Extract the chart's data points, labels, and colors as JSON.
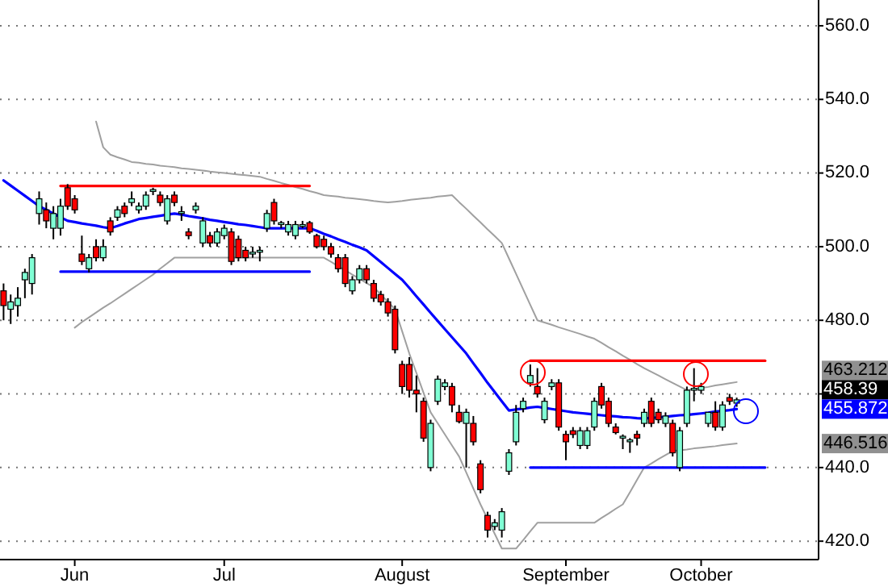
{
  "chart_data": {
    "type": "candlestick",
    "categories": [
      null,
      null,
      null,
      null,
      null,
      null,
      null,
      null,
      null,
      null,
      "Jun",
      null,
      null,
      null,
      null,
      null,
      null,
      null,
      null,
      null,
      null,
      null,
      null,
      null,
      null,
      null,
      null,
      null,
      null,
      null,
      null,
      "Jul",
      null,
      null,
      null,
      null,
      null,
      null,
      null,
      null,
      null,
      null,
      null,
      null,
      null,
      null,
      null,
      null,
      null,
      null,
      null,
      null,
      null,
      null,
      null,
      null,
      "August",
      null,
      null,
      null,
      null,
      null,
      null,
      null,
      null,
      null,
      null,
      null,
      null,
      null,
      null,
      null,
      null,
      null,
      null,
      null,
      null,
      null,
      null,
      "September",
      null,
      null,
      null,
      null,
      null,
      null,
      null,
      null,
      null,
      null,
      null,
      null,
      null,
      null,
      null,
      null,
      null,
      null,
      "October",
      null,
      null,
      null,
      null,
      null,
      null,
      null,
      null,
      null,
      null,
      null,
      null,
      null,
      null,
      null,
      null
    ],
    "ohlc": [
      [
        488,
        490,
        480,
        484
      ],
      [
        483,
        487,
        479,
        485
      ],
      [
        484,
        489,
        481,
        486
      ],
      [
        491,
        494,
        486,
        493
      ],
      [
        490,
        498,
        487,
        497
      ],
      [
        509,
        515,
        506,
        513
      ],
      [
        510,
        512,
        505,
        507
      ],
      [
        505,
        511,
        502,
        509
      ],
      [
        505,
        513,
        503,
        511
      ],
      [
        516,
        517,
        510,
        511
      ],
      [
        513,
        514,
        509,
        510
      ],
      [
        498,
        503,
        495,
        496
      ],
      [
        494,
        498,
        493,
        497
      ],
      [
        500,
        502,
        496,
        497
      ],
      [
        497,
        502,
        496,
        500
      ],
      [
        507,
        508,
        503,
        504
      ],
      [
        508,
        511,
        507,
        510
      ],
      [
        511,
        512,
        508,
        509
      ],
      [
        512,
        515,
        511,
        513
      ],
      [
        510,
        512,
        509,
        511
      ],
      [
        511,
        515,
        510,
        514
      ],
      [
        515,
        516,
        514,
        515.5
      ],
      [
        514,
        515,
        511,
        512
      ],
      [
        507,
        514,
        506,
        513
      ],
      [
        514,
        515,
        511,
        512
      ],
      [
        509,
        511,
        507,
        509.5
      ],
      [
        504,
        505,
        502,
        503
      ],
      [
        510,
        512,
        509,
        511
      ],
      [
        501,
        508,
        500,
        507
      ],
      [
        503,
        504,
        500,
        501
      ],
      [
        501,
        505,
        500,
        504
      ],
      [
        503,
        506,
        502,
        505
      ],
      [
        504,
        505,
        495,
        496
      ],
      [
        502,
        503,
        496,
        497
      ],
      [
        499,
        500,
        496,
        497
      ],
      [
        498,
        500,
        497,
        498.5
      ],
      [
        498.5,
        500,
        496,
        499
      ],
      [
        505,
        510,
        504,
        509
      ],
      [
        512,
        513,
        506,
        507
      ],
      [
        506,
        507,
        505,
        506.5
      ],
      [
        504,
        507,
        503,
        506
      ],
      [
        503,
        507,
        502,
        506
      ],
      [
        505.5,
        507,
        505,
        506
      ],
      [
        506.5,
        507,
        503.5,
        504
      ],
      [
        503,
        503.5,
        499.5,
        500
      ],
      [
        502,
        503,
        499,
        500
      ],
      [
        500,
        501,
        497,
        498
      ],
      [
        497,
        498,
        493,
        494
      ],
      [
        497,
        498,
        489,
        490
      ],
      [
        488,
        492,
        487,
        491
      ],
      [
        491,
        495,
        490,
        494
      ],
      [
        494,
        495,
        490,
        491
      ],
      [
        490,
        491,
        485,
        486
      ],
      [
        487,
        488,
        484,
        485
      ],
      [
        485,
        486,
        481,
        482
      ],
      [
        483,
        484,
        471,
        472
      ],
      [
        468,
        469,
        460,
        462
      ],
      [
        468,
        470,
        459,
        461
      ],
      [
        461,
        465,
        455,
        460
      ],
      [
        458,
        459,
        447,
        448
      ],
      [
        440,
        453,
        439,
        452
      ],
      [
        458,
        465,
        457,
        464
      ],
      [
        462,
        464,
        461,
        463
      ],
      [
        462,
        463,
        455,
        457
      ],
      [
        455,
        457,
        452,
        452.5
      ],
      [
        452,
        456,
        440,
        455
      ],
      [
        452,
        454,
        446,
        447
      ],
      [
        441,
        442,
        433,
        434
      ],
      [
        427,
        428,
        421,
        423
      ],
      [
        424,
        426,
        423,
        425
      ],
      [
        423,
        429,
        421,
        428
      ],
      [
        439,
        445,
        438,
        444
      ],
      [
        447,
        457,
        446,
        455
      ],
      [
        456,
        459,
        455,
        458
      ],
      [
        463,
        468,
        462,
        465
      ],
      [
        462,
        467,
        459,
        460
      ],
      [
        453,
        459,
        452,
        458
      ],
      [
        462,
        464,
        461,
        463
      ],
      [
        463,
        464,
        450,
        451
      ],
      [
        449,
        450,
        442,
        447
      ],
      [
        450,
        451,
        448,
        449
      ],
      [
        446,
        451,
        445,
        450
      ],
      [
        446,
        451,
        445,
        450
      ],
      [
        451,
        459,
        450,
        458
      ],
      [
        462,
        463,
        456,
        457
      ],
      [
        458,
        459,
        451,
        452
      ],
      [
        451,
        452,
        449,
        449.5
      ],
      [
        448,
        449,
        445,
        448.5
      ],
      [
        447,
        448,
        444,
        447.5
      ],
      [
        449,
        450,
        446,
        448
      ],
      [
        452,
        456,
        451,
        455
      ],
      [
        458,
        459,
        451,
        452
      ],
      [
        455,
        456,
        452,
        453
      ],
      [
        452,
        455,
        451,
        454
      ],
      [
        452,
        453,
        443,
        444
      ],
      [
        440,
        451,
        439,
        450
      ],
      [
        452,
        462,
        451,
        461
      ],
      [
        461,
        467,
        458,
        461.5
      ],
      [
        461,
        463,
        460,
        462
      ],
      [
        452,
        455,
        451,
        455
      ],
      [
        455,
        458,
        450,
        451
      ],
      [
        451,
        458,
        450,
        457
      ],
      [
        459,
        460,
        457,
        458
      ],
      [
        457.5,
        459,
        456.5,
        458.39
      ],
      null,
      null,
      null,
      null,
      null,
      null,
      null,
      null,
      null,
      null,
      null
    ],
    "colors": [
      "#ff0000",
      "#80ffd4",
      "#80ffd4",
      "#80ffd4",
      "#80ffd4",
      "#80ffd4",
      "#ff0000",
      "#80ffd4",
      "#80ffd4",
      "#ff0000",
      "#ff0000",
      "#ff0000",
      "#80ffd4",
      "#ff0000",
      "#80ffd4",
      "#ff0000",
      "#80ffd4",
      "#ff0000",
      "#80ffd4",
      "#80ffd4",
      "#80ffd4",
      "#80ffd4",
      "#ff0000",
      "#80ffd4",
      "#ff0000",
      "#80ffd4",
      "#ff0000",
      "#80ffd4",
      "#80ffd4",
      "#ff0000",
      "#80ffd4",
      "#80ffd4",
      "#ff0000",
      "#ff0000",
      "#ff0000",
      "#80ffd4",
      "#80ffd4",
      "#80ffd4",
      "#ff0000",
      "#80ffd4",
      "#80ffd4",
      "#80ffd4",
      "#80ffd4",
      "#ff0000",
      "#ff0000",
      "#ff0000",
      "#ff0000",
      "#ff0000",
      "#ff0000",
      "#80ffd4",
      "#80ffd4",
      "#ff0000",
      "#ff0000",
      "#ff0000",
      "#ff0000",
      "#ff0000",
      "#ff0000",
      "#ff0000",
      "#ff0000",
      "#ff0000",
      "#80ffd4",
      "#80ffd4",
      "#80ffd4",
      "#ff0000",
      "#ff0000",
      "#80ffd4",
      "#ff0000",
      "#ff0000",
      "#ff0000",
      "#80ffd4",
      "#80ffd4",
      "#80ffd4",
      "#80ffd4",
      "#80ffd4",
      "#80ffd4",
      "#ff0000",
      "#80ffd4",
      "#80ffd4",
      "#ff0000",
      "#ff0000",
      "#ff0000",
      "#80ffd4",
      "#80ffd4",
      "#80ffd4",
      "#ff0000",
      "#ff0000",
      "#ff0000",
      "#80ffd4",
      "#80ffd4",
      "#ff0000",
      "#80ffd4",
      "#ff0000",
      "#ff0000",
      "#80ffd4",
      "#ff0000",
      "#80ffd4",
      "#80ffd4",
      "#80ffd4",
      "#80ffd4",
      "#80ffd4",
      "#ff0000",
      "#80ffd4",
      "#ff0000",
      "#80ffd4",
      null,
      null,
      null,
      null,
      null,
      null,
      null,
      null,
      null,
      null,
      null
    ],
    "series": [
      {
        "type": "line",
        "color": "#0000ff",
        "values": [
          518,
          516.6,
          515.2,
          513.8,
          512.4,
          511,
          510,
          509,
          508,
          507,
          506.7,
          506.3,
          506,
          505.7,
          505.3,
          505,
          505.6,
          506.3,
          506.9,
          507.5,
          507.8,
          508.1,
          508.4,
          508.7,
          509,
          508.7,
          508.3,
          508,
          507.7,
          507.3,
          507,
          506.7,
          506.4,
          506.1,
          505.9,
          505.6,
          505.3,
          505,
          505,
          505,
          505,
          505,
          505,
          505,
          504.3,
          503.5,
          502.8,
          502,
          501.3,
          500.5,
          499.8,
          499,
          497.4,
          495.8,
          494.2,
          492.6,
          491,
          488.8,
          486.5,
          484.3,
          482,
          479.8,
          477.6,
          475.4,
          473.2,
          471,
          468.3,
          465.7,
          463,
          460.5,
          458,
          455.5,
          455.8,
          456,
          456.3,
          456.5,
          456.2,
          455.9,
          455.6,
          455.3,
          455,
          454.8,
          454.6,
          454.4,
          454.2,
          454,
          453.9,
          453.7,
          453.6,
          453.4,
          453.3,
          453.5,
          453.6,
          453.8,
          454,
          454.2,
          454.3,
          454.5,
          454.7,
          454.9,
          455.2,
          455.4,
          455.6,
          455.872,
          null,
          null,
          null,
          null,
          null,
          null,
          null,
          null,
          null,
          null,
          null
        ]
      },
      {
        "type": "line",
        "color": "#a0a0a0",
        "values": [
          null,
          null,
          null,
          null,
          null,
          null,
          null,
          null,
          null,
          null,
          null,
          null,
          null,
          534,
          527,
          525,
          524.3,
          523.7,
          523,
          522.8,
          522.5,
          522.3,
          522,
          521.8,
          521.6,
          521.3,
          521.1,
          520.9,
          520.7,
          520.4,
          520.2,
          520,
          519.8,
          519.6,
          519.4,
          519.2,
          519,
          518.4,
          517.9,
          517.3,
          516.8,
          516.2,
          515.7,
          515.1,
          514.6,
          514,
          513.8,
          513.6,
          513.3,
          513.1,
          512.9,
          512.7,
          512.4,
          512.2,
          512,
          512.2,
          512.4,
          512.7,
          512.9,
          513.1,
          513.3,
          513.6,
          513.8,
          514,
          512.1,
          510.3,
          508.4,
          506.6,
          504.7,
          502.9,
          501,
          496.8,
          492.6,
          488.4,
          484.2,
          480,
          479.4,
          478.8,
          478.1,
          477.5,
          476.9,
          476.3,
          475.6,
          475,
          473.9,
          472.7,
          471.6,
          470.4,
          469.3,
          468.1,
          467,
          466,
          465,
          464,
          463,
          462,
          461,
          461.3,
          461.6,
          461.9,
          462.3,
          462.6,
          462.9,
          463.212,
          null,
          null,
          null,
          null,
          null,
          null,
          null,
          null,
          null,
          null,
          null
        ]
      },
      {
        "type": "line",
        "color": "#a0a0a0",
        "values": [
          null,
          null,
          null,
          null,
          null,
          null,
          null,
          null,
          null,
          null,
          478,
          479.5,
          480.8,
          482.1,
          483.4,
          484.6,
          485.9,
          487.2,
          488.5,
          489.8,
          491.1,
          492.4,
          494,
          495.5,
          497,
          497,
          497,
          497,
          497,
          497,
          497,
          497,
          497,
          497,
          497,
          497,
          497,
          497,
          497,
          497,
          497,
          497,
          497,
          497,
          497,
          497,
          495.9,
          494.7,
          493.6,
          492.4,
          491.3,
          490.1,
          489,
          487,
          485,
          483,
          477,
          471,
          465.7,
          460.3,
          455,
          452,
          449,
          446,
          443,
          438.7,
          434.3,
          430,
          426,
          422,
          418,
          418,
          418,
          420.3,
          422.7,
          425,
          425,
          425,
          425,
          425,
          425,
          425,
          425,
          425,
          426.3,
          427.5,
          428.8,
          430,
          433.3,
          436.7,
          440,
          441.1,
          442.3,
          443.4,
          444.5,
          444.7,
          444.9,
          445.2,
          445.4,
          445.6,
          445.8,
          446.1,
          446.3,
          446.516,
          null,
          null,
          null,
          null,
          null,
          null,
          null,
          null,
          null,
          null,
          null
        ]
      },
      {
        "type": "line",
        "color": "#ff0000",
        "values": [
          null,
          null,
          null,
          null,
          null,
          null,
          null,
          null,
          516.5,
          516.5,
          516.5,
          516.5,
          516.5,
          516.5,
          516.5,
          516.5,
          516.5,
          516.5,
          516.5,
          516.5,
          516.5,
          516.5,
          516.5,
          516.5,
          516.5,
          516.5,
          516.5,
          516.5,
          516.5,
          516.5,
          516.5,
          516.5,
          516.5,
          516.5,
          516.5,
          516.5,
          516.5,
          516.5,
          516.5,
          516.5,
          516.5,
          516.5,
          516.5,
          516.5,
          null,
          null,
          null,
          null,
          null,
          null,
          null,
          null,
          null,
          null,
          null,
          null,
          null,
          null,
          null,
          null,
          null,
          null,
          null,
          null,
          null,
          null,
          null,
          null,
          null,
          null,
          null,
          null,
          null,
          null,
          null,
          null,
          null,
          null,
          null,
          null,
          null,
          null,
          null,
          null,
          null,
          null,
          null,
          null,
          null,
          null,
          null,
          null,
          null,
          null,
          null,
          null,
          null,
          null,
          null,
          null,
          null,
          null,
          null,
          null,
          null,
          null,
          null,
          null,
          null,
          null,
          null,
          null,
          null,
          null,
          null
        ]
      },
      {
        "type": "line",
        "color": "#0000ff",
        "values": [
          null,
          null,
          null,
          null,
          null,
          null,
          null,
          null,
          493.2,
          493.2,
          493.2,
          493.2,
          493.2,
          493.2,
          493.2,
          493.2,
          493.2,
          493.2,
          493.2,
          493.2,
          493.2,
          493.2,
          493.2,
          493.2,
          493.2,
          493.2,
          493.2,
          493.2,
          493.2,
          493.2,
          493.2,
          493.2,
          493.2,
          493.2,
          493.2,
          493.2,
          493.2,
          493.2,
          493.2,
          493.2,
          493.2,
          493.2,
          493.2,
          493.2,
          null,
          null,
          null,
          null,
          null,
          null,
          null,
          null,
          null,
          null,
          null,
          null,
          null,
          null,
          null,
          null,
          null,
          null,
          null,
          null,
          null,
          null,
          null,
          null,
          null,
          null,
          null,
          null,
          null,
          null,
          null,
          null,
          null,
          null,
          null,
          null,
          null,
          null,
          null,
          null,
          null,
          null,
          null,
          null,
          null,
          null,
          null,
          null,
          null,
          null,
          null,
          null,
          null,
          null,
          null,
          null,
          null,
          null,
          null,
          null,
          null,
          null,
          null,
          null,
          null,
          null,
          null,
          null,
          null,
          null,
          null
        ]
      },
      {
        "type": "line",
        "color": "#ff0000",
        "values": [
          null,
          null,
          null,
          null,
          null,
          null,
          null,
          null,
          null,
          null,
          null,
          null,
          null,
          null,
          null,
          null,
          null,
          null,
          null,
          null,
          null,
          null,
          null,
          null,
          null,
          null,
          null,
          null,
          null,
          null,
          null,
          null,
          null,
          null,
          null,
          null,
          null,
          null,
          null,
          null,
          null,
          null,
          null,
          null,
          null,
          null,
          null,
          null,
          null,
          null,
          null,
          null,
          null,
          null,
          null,
          null,
          null,
          null,
          null,
          null,
          null,
          null,
          null,
          null,
          null,
          null,
          null,
          null,
          null,
          null,
          null,
          null,
          null,
          null,
          469,
          469,
          469,
          469,
          469,
          469,
          469,
          469,
          469,
          469,
          469,
          469,
          469,
          469,
          469,
          469,
          469,
          469,
          469,
          469,
          469,
          469,
          469,
          469,
          469,
          469,
          469,
          469,
          469,
          469,
          469,
          469,
          469,
          469,
          null,
          null,
          null,
          null,
          null,
          null,
          null
        ]
      },
      {
        "type": "line",
        "color": "#0000ff",
        "values": [
          null,
          null,
          null,
          null,
          null,
          null,
          null,
          null,
          null,
          null,
          null,
          null,
          null,
          null,
          null,
          null,
          null,
          null,
          null,
          null,
          null,
          null,
          null,
          null,
          null,
          null,
          null,
          null,
          null,
          null,
          null,
          null,
          null,
          null,
          null,
          null,
          null,
          null,
          null,
          null,
          null,
          null,
          null,
          null,
          null,
          null,
          null,
          null,
          null,
          null,
          null,
          null,
          null,
          null,
          null,
          null,
          null,
          null,
          null,
          null,
          null,
          null,
          null,
          null,
          null,
          null,
          null,
          null,
          null,
          null,
          null,
          null,
          null,
          null,
          440,
          440,
          440,
          440,
          440,
          440,
          440,
          440,
          440,
          440,
          440,
          440,
          440,
          440,
          440,
          440,
          440,
          440,
          440,
          440,
          440,
          440,
          440,
          440,
          440,
          440,
          440,
          440,
          440,
          440,
          440,
          440,
          440,
          440,
          null,
          null,
          null,
          null,
          null,
          null,
          null
        ]
      }
    ],
    "ylim": [
      415,
      567
    ],
    "yticks": [
      {
        "value": 420,
        "label": "420.0"
      },
      {
        "value": 440,
        "label": "440.0"
      },
      {
        "value": 460,
        "label": null
      },
      {
        "value": 480,
        "label": "480.0"
      },
      {
        "value": 500,
        "label": "500.0"
      },
      {
        "value": 520,
        "label": "520.0"
      },
      {
        "value": 540,
        "label": "540.0"
      },
      {
        "value": 560,
        "label": "560.0"
      }
    ],
    "grid": "y",
    "annotations": [
      "463.212",
      "458.39",
      "455.872",
      "446.516"
    ]
  }
}
